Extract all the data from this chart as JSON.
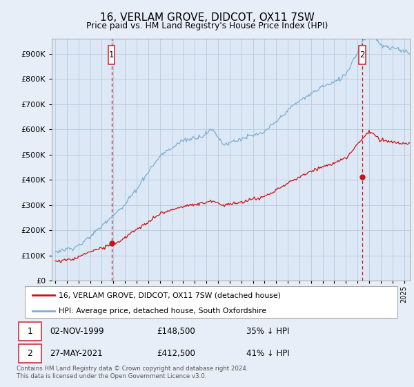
{
  "title": "16, VERLAM GROVE, DIDCOT, OX11 7SW",
  "subtitle": "Price paid vs. HM Land Registry's House Price Index (HPI)",
  "ytick_values": [
    0,
    100000,
    200000,
    300000,
    400000,
    500000,
    600000,
    700000,
    800000,
    900000
  ],
  "ylim": [
    0,
    960000
  ],
  "xlim_start": 1994.7,
  "xlim_end": 2025.5,
  "hpi_color": "#7bafd4",
  "price_color": "#cc1111",
  "marker1_date": 1999.84,
  "marker1_price": 148500,
  "marker2_date": 2021.41,
  "marker2_price": 412500,
  "marker1_label": "02-NOV-1999",
  "marker1_amount": "£148,500",
  "marker1_pct": "35% ↓ HPI",
  "marker2_label": "27-MAY-2021",
  "marker2_amount": "£412,500",
  "marker2_pct": "41% ↓ HPI",
  "legend_label1": "16, VERLAM GROVE, DIDCOT, OX11 7SW (detached house)",
  "legend_label2": "HPI: Average price, detached house, South Oxfordshire",
  "footer": "Contains HM Land Registry data © Crown copyright and database right 2024.\nThis data is licensed under the Open Government Licence v3.0.",
  "bg_color": "#e8eef8",
  "plot_bg": "#dce8f5",
  "grid_color": "#b0c4d8",
  "dashed_color": "#cc1111",
  "box_color": "#cc3333"
}
